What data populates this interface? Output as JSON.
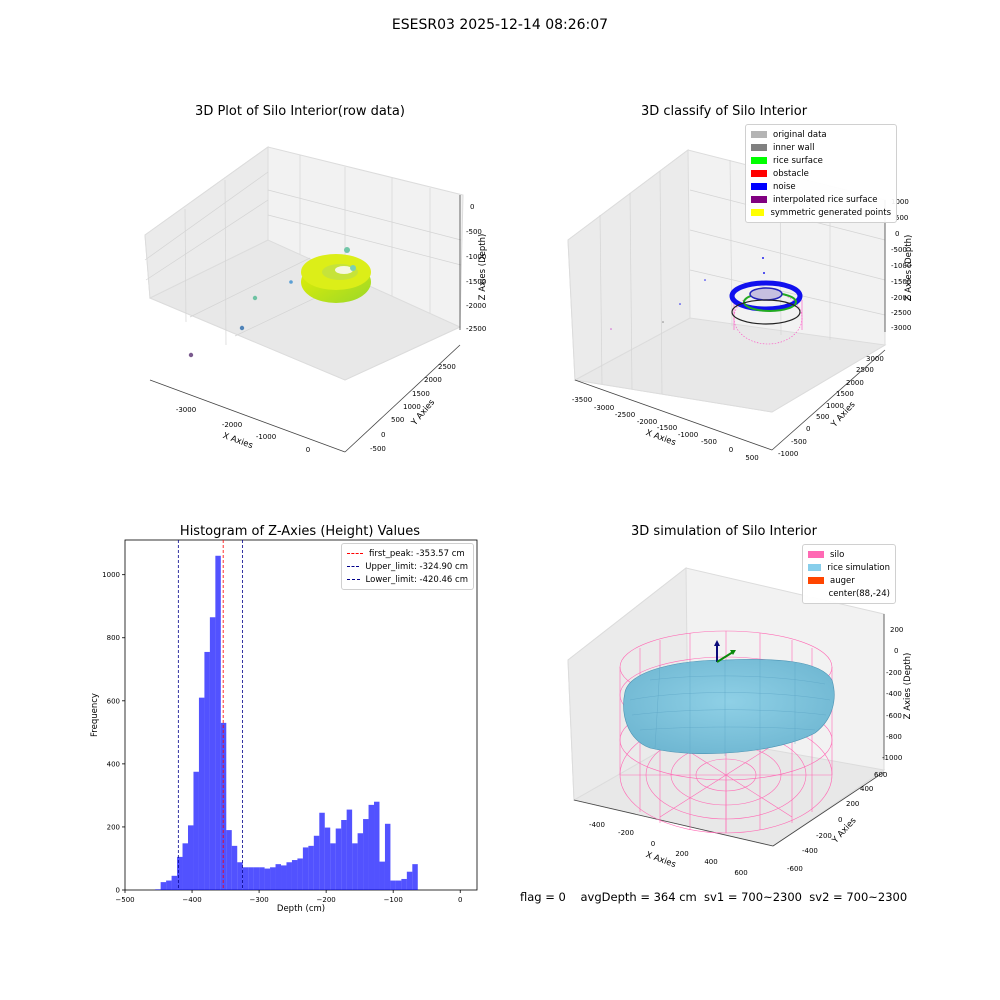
{
  "suptitle": "ESESR03 2025-12-14 08:26:07",
  "panels": {
    "raw": {
      "title": "3D Plot of Silo Interior(row data)",
      "xlabel": "X Axies",
      "ylabel": "Y Axies",
      "zlabel": "Z Axies (Depth)",
      "xticks": [
        "-3000",
        "-2000",
        "-1000",
        "0"
      ],
      "yticks": [
        "-500",
        "0",
        "500",
        "1000",
        "1500",
        "2000",
        "2500"
      ],
      "zticks": [
        "0",
        "-500",
        "-1000",
        "-1500",
        "-2000",
        "-2500"
      ]
    },
    "classify": {
      "title": "3D classify of Silo Interior",
      "xlabel": "X Axies",
      "ylabel": "Y Axies",
      "zlabel": "Z Axies (Depth)",
      "xticks": [
        "-3500",
        "-3000",
        "-2500",
        "-2000",
        "-1500",
        "-1000",
        "-500",
        "0",
        "500"
      ],
      "yticks": [
        "-1000",
        "-500",
        "0",
        "500",
        "1000",
        "1500",
        "2000",
        "2500",
        "3000"
      ],
      "zticks": [
        "1000",
        "500",
        "0",
        "-500",
        "-1000",
        "-1500",
        "-2000",
        "-2500",
        "-3000"
      ],
      "legend": [
        {
          "label": "original data",
          "color": "#b4b4b4"
        },
        {
          "label": "inner wall",
          "color": "#808080"
        },
        {
          "label": "rice surface",
          "color": "#00ff00"
        },
        {
          "label": "obstacle",
          "color": "#ff0000"
        },
        {
          "label": "noise",
          "color": "#0000ff"
        },
        {
          "label": "interpolated rice surface",
          "color": "#800080"
        },
        {
          "label": "symmetric generated points",
          "color": "#ffff00"
        }
      ]
    },
    "simulation": {
      "title": "3D simulation of Silo Interior",
      "xlabel": "X Axies",
      "ylabel": "Y Axies",
      "zlabel": "Z Axies (Depth)",
      "xticks": [
        "-400",
        "-200",
        "0",
        "200",
        "400",
        "600"
      ],
      "yticks": [
        "-600",
        "-400",
        "-200",
        "0",
        "200",
        "400",
        "600"
      ],
      "zticks": [
        "200",
        "0",
        "-200",
        "-400",
        "-600",
        "-800",
        "-1000"
      ],
      "legend": [
        {
          "label": "silo",
          "color": "#ff69b4"
        },
        {
          "label": "rice simulation",
          "color": "#87ceeb"
        },
        {
          "label": "auger",
          "color": "#ff4500"
        },
        {
          "label": "center(88,-24)",
          "color": "#ffffff"
        }
      ]
    }
  },
  "chart_data": [
    {
      "type": "histogram",
      "title": "Histogram of Z-Axies (Height) Values",
      "xlabel": "Depth (cm)",
      "ylabel": "Frequency",
      "xlim": [
        -500,
        25
      ],
      "ylim": [
        0,
        1110
      ],
      "xticks": [
        -500,
        -400,
        -300,
        -200,
        -100,
        0
      ],
      "yticks": [
        0,
        200,
        400,
        600,
        800,
        1000
      ],
      "bar_color": "#0000ff",
      "bin_start": -455,
      "bin_width": 8.16,
      "values": [
        2,
        25,
        30,
        45,
        105,
        148,
        205,
        375,
        610,
        755,
        865,
        1060,
        530,
        190,
        140,
        88,
        72,
        72,
        72,
        72,
        68,
        72,
        82,
        78,
        88,
        95,
        100,
        135,
        140,
        172,
        245,
        198,
        148,
        195,
        222,
        255,
        148,
        180,
        225,
        270,
        280,
        90,
        210,
        30,
        30,
        35,
        58,
        82
      ],
      "reference_lines": [
        {
          "label": "first_peak: -353.57 cm",
          "x": -353.57,
          "color": "#ff0000"
        },
        {
          "label": "Upper_limit: -324.90 cm",
          "x": -324.9,
          "color": "#00008b"
        },
        {
          "label": "Lower_limit: -420.46 cm",
          "x": -420.46,
          "color": "#00008b"
        }
      ],
      "legend_position": "top-right"
    }
  ],
  "status": {
    "flag": "flag = 0",
    "avg": "avgDepth = 364 cm  sv1 = 700~2300  sv2 = 700~2300"
  }
}
